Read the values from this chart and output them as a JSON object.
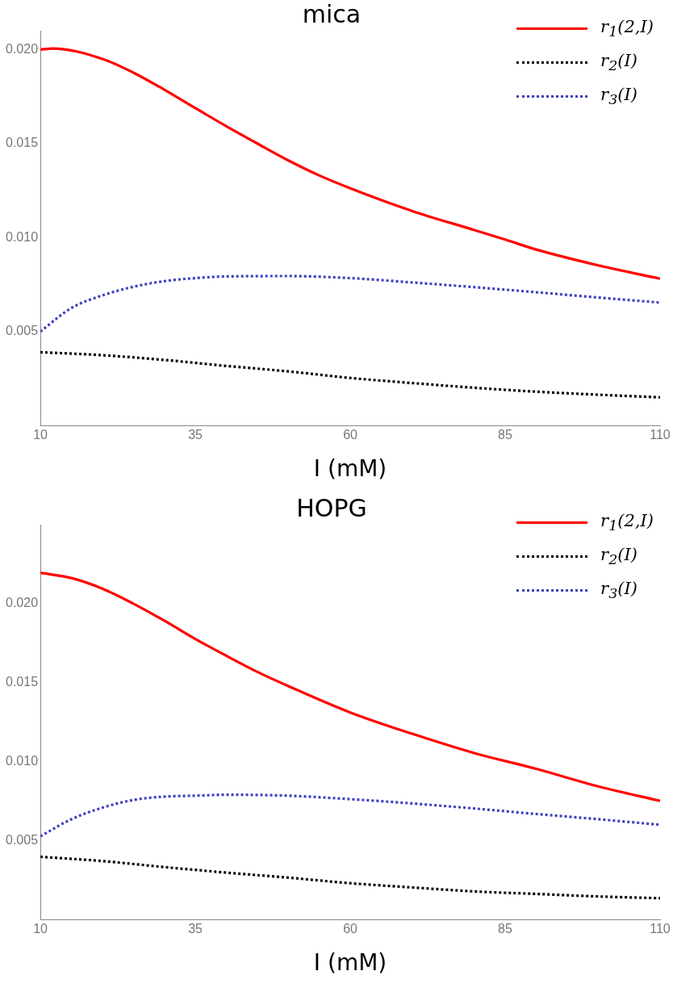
{
  "chart_data": [
    {
      "type": "line",
      "title": "mica",
      "xlabel": "I (mM)",
      "xlim": [
        10,
        110
      ],
      "xticks": [
        10,
        35,
        60,
        85,
        110
      ],
      "ylim": [
        0,
        0.021
      ],
      "yticks": [
        {
          "value": 0.005,
          "label": "0.005"
        },
        {
          "value": 0.01,
          "label": "0.010"
        },
        {
          "value": 0.015,
          "label": "0.015"
        },
        {
          "value": 0.02,
          "label": "0.020"
        }
      ],
      "grid": false,
      "legend": "top right",
      "marker": "none",
      "series": [
        {
          "name": "r$_{1}$(2,I)",
          "color": "#ff0000",
          "line_style": "solid",
          "x": [
            10,
            12,
            20,
            25,
            30,
            35,
            40,
            45,
            50,
            55,
            60,
            70,
            80,
            85,
            90,
            100,
            110
          ],
          "values": [
            0.02,
            0.02005,
            0.0195,
            0.01877,
            0.01786,
            0.01688,
            0.01592,
            0.015,
            0.0141,
            0.0133,
            0.01262,
            0.01141,
            0.0104,
            0.00989,
            0.00936,
            0.00852,
            0.00781
          ]
        },
        {
          "name": "r$_{2}$(I)",
          "color": "#000000",
          "line_style": "dotted",
          "x": [
            10,
            20,
            30,
            40,
            50,
            60,
            70,
            80,
            90,
            100,
            110
          ],
          "values": [
            0.0039,
            0.00374,
            0.00349,
            0.00317,
            0.00288,
            0.00253,
            0.00226,
            0.00201,
            0.0018,
            0.00164,
            0.0015
          ]
        },
        {
          "name": "r$_{3}$(I)",
          "color": "#3f3fbf",
          "line_style": "dotted",
          "x": [
            10,
            15,
            20,
            25,
            30,
            35,
            40,
            50,
            60,
            70,
            80,
            90,
            100,
            110
          ],
          "values": [
            0.005,
            0.00625,
            0.00692,
            0.00738,
            0.00768,
            0.00784,
            0.00793,
            0.00795,
            0.00784,
            0.00761,
            0.00736,
            0.00709,
            0.00681,
            0.00654
          ]
        }
      ]
    },
    {
      "type": "line",
      "title": "HOPG",
      "xlabel": "I (mM)",
      "xlim": [
        10,
        110
      ],
      "xticks": [
        10,
        35,
        60,
        85,
        110
      ],
      "ylim": [
        0,
        0.025
      ],
      "yticks": [
        {
          "value": 0.005,
          "label": "0.005"
        },
        {
          "value": 0.01,
          "label": "0.010"
        },
        {
          "value": 0.015,
          "label": "0.015"
        },
        {
          "value": 0.02,
          "label": "0.020"
        }
      ],
      "grid": false,
      "legend": "top right",
      "marker": "none",
      "series": [
        {
          "name": "r$_{1}$(2,I)",
          "color": "#ff0000",
          "line_style": "solid",
          "x": [
            10,
            15,
            20,
            25,
            30,
            35,
            40,
            45,
            50,
            60,
            70,
            80,
            90,
            100,
            110
          ],
          "values": [
            0.02195,
            0.02162,
            0.02095,
            0.02,
            0.01892,
            0.01776,
            0.0167,
            0.01568,
            0.01478,
            0.01311,
            0.01176,
            0.01054,
            0.00954,
            0.00843,
            0.00751
          ]
        },
        {
          "name": "r$_{2}$(I)",
          "color": "#000000",
          "line_style": "dotted",
          "x": [
            10,
            20,
            30,
            40,
            50,
            60,
            70,
            80,
            90,
            100,
            110
          ],
          "values": [
            0.00397,
            0.0037,
            0.00332,
            0.00297,
            0.00265,
            0.0023,
            0.00203,
            0.00178,
            0.00162,
            0.00146,
            0.00135
          ]
        },
        {
          "name": "r$_{3}$(I)",
          "color": "#3f3fbf",
          "line_style": "dotted",
          "x": [
            10,
            15,
            20,
            25,
            30,
            35,
            40,
            50,
            60,
            70,
            80,
            90,
            100,
            110
          ],
          "values": [
            0.00527,
            0.00635,
            0.00708,
            0.00757,
            0.00778,
            0.00784,
            0.0079,
            0.00784,
            0.00762,
            0.00735,
            0.00703,
            0.00668,
            0.00635,
            0.006
          ]
        }
      ]
    }
  ]
}
